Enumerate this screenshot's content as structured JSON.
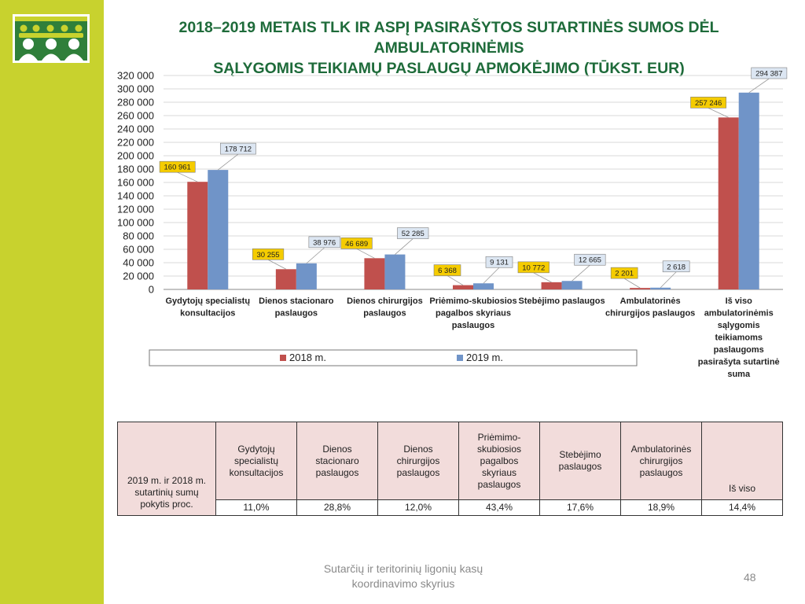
{
  "title": {
    "line1": "2018–2019 METAIS TLK IR ASPĮ PASIRAŠYTOS SUTARTINĖS SUMOS DĖL AMBULATORINĖMIS",
    "line2": "SĄLYGOMIS TEIKIAMŲ PASLAUGŲ APMOKĖJIMO (TŪKST. EUR)"
  },
  "colors": {
    "sidebar": "#c8d22e",
    "logo_green": "#2f7f3a",
    "title": "#1e6b3a",
    "series_2018": "#c0504d",
    "series_2019": "#7094c8",
    "table_bg": "#f2dcdb"
  },
  "chart_data": {
    "type": "bar",
    "categories": [
      [
        "Gydytojų specialistų",
        "konsultacijos"
      ],
      [
        "Dienos stacionaro",
        "paslaugos"
      ],
      [
        "Dienos chirurgijos",
        "paslaugos"
      ],
      [
        "Priėmimo-skubiosios",
        "pagalbos skyriaus",
        "paslaugos"
      ],
      [
        "Stebėjimo paslaugos"
      ],
      [
        "Ambulatorinės",
        "chirurgijos paslaugos"
      ],
      [
        "Iš viso",
        "ambulatorinėmis",
        "sąlygomis",
        "teikiamoms",
        "paslaugoms",
        "pasirašyta sutartinė",
        "suma"
      ]
    ],
    "series": [
      {
        "name": "2018 m.",
        "values": [
          160961,
          30255,
          46689,
          6368,
          10772,
          2201,
          257246
        ],
        "labels": [
          "160 961",
          "30 255",
          "46 689",
          "6 368",
          "10 772",
          "2 201",
          "257 246"
        ]
      },
      {
        "name": "2019 m.",
        "values": [
          178712,
          38976,
          52285,
          9131,
          12665,
          2618,
          294387
        ],
        "labels": [
          "178 712",
          "38 976",
          "52 285",
          "9 131",
          "12 665",
          "2 618",
          "294 387"
        ]
      }
    ],
    "yticks": [
      "0",
      "20 000",
      "40 000",
      "60 000",
      "80 000",
      "100 000",
      "120 000",
      "140 000",
      "160 000",
      "180 000",
      "200 000",
      "220 000",
      "240 000",
      "260 000",
      "280 000",
      "300 000",
      "320 000"
    ],
    "ylim": [
      0,
      320000
    ],
    "grid": true,
    "legend": "bottom"
  },
  "table": {
    "row_header": [
      "2019 m. ir 2018 m.",
      "sutartinių sumų",
      "pokytis proc."
    ],
    "columns": [
      [
        "Gydytojų",
        "specialistų",
        "konsultacijos"
      ],
      [
        "Dienos",
        "stacionaro",
        "paslaugos"
      ],
      [
        "Dienos",
        "chirurgijos",
        "paslaugos"
      ],
      [
        "Priėmimo-",
        "skubiosios",
        "pagalbos",
        "skyriaus",
        "paslaugos"
      ],
      [
        "Stebėjimo",
        "paslaugos"
      ],
      [
        "Ambulatorinės",
        "chirurgijos",
        "paslaugos"
      ],
      [
        "Iš viso"
      ]
    ],
    "values": [
      "11,0%",
      "28,8%",
      "12,0%",
      "43,4%",
      "17,6%",
      "18,9%",
      "14,4%"
    ]
  },
  "footer": {
    "line1": "Sutarčių ir teritorinių ligonių kasų",
    "line2": "koordinavimo skyrius",
    "page": "48"
  }
}
